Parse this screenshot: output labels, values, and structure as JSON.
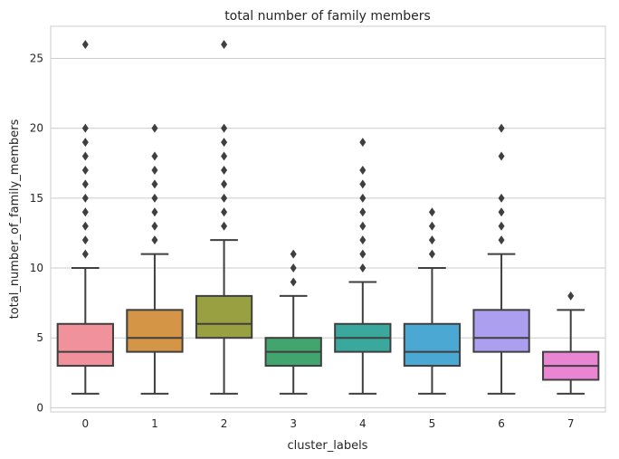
{
  "chart_data": {
    "type": "box",
    "title": "total number of family members",
    "xlabel": "cluster_labels",
    "ylabel": "total_number_of_family_members",
    "ylim": [
      -0.3,
      27.3
    ],
    "yticks": [
      0,
      5,
      10,
      15,
      20,
      25
    ],
    "grid": true,
    "categories": [
      "0",
      "1",
      "2",
      "3",
      "4",
      "5",
      "6",
      "7"
    ],
    "colors": [
      "#f0919c",
      "#d49546",
      "#98a041",
      "#43a56e",
      "#3aa89c",
      "#4aa8d2",
      "#ad9ff0",
      "#e985d2"
    ],
    "boxes": [
      {
        "label": "0",
        "whisker_low": 1,
        "q1": 3,
        "median": 4,
        "q3": 6,
        "whisker_high": 10,
        "outliers": [
          11,
          12,
          13,
          14,
          15,
          16,
          17,
          18,
          19,
          20,
          26
        ]
      },
      {
        "label": "1",
        "whisker_low": 1,
        "q1": 4,
        "median": 5,
        "q3": 7,
        "whisker_high": 11,
        "outliers": [
          12,
          13,
          14,
          15,
          16,
          17,
          18,
          20
        ]
      },
      {
        "label": "2",
        "whisker_low": 1,
        "q1": 5,
        "median": 6,
        "q3": 8,
        "whisker_high": 12,
        "outliers": [
          13,
          14,
          15,
          16,
          17,
          18,
          19,
          20,
          26
        ]
      },
      {
        "label": "3",
        "whisker_low": 1,
        "q1": 3,
        "median": 4,
        "q3": 5,
        "whisker_high": 8,
        "outliers": [
          9,
          10,
          11
        ]
      },
      {
        "label": "4",
        "whisker_low": 1,
        "q1": 4,
        "median": 5,
        "q3": 6,
        "whisker_high": 9,
        "outliers": [
          10,
          11,
          12,
          13,
          14,
          15,
          16,
          17,
          19
        ]
      },
      {
        "label": "5",
        "whisker_low": 1,
        "q1": 3,
        "median": 4,
        "q3": 6,
        "whisker_high": 10,
        "outliers": [
          11,
          12,
          13,
          14
        ]
      },
      {
        "label": "6",
        "whisker_low": 1,
        "q1": 4,
        "median": 5,
        "q3": 7,
        "whisker_high": 11,
        "outliers": [
          12,
          13,
          14,
          15,
          18,
          20
        ]
      },
      {
        "label": "7",
        "whisker_low": 1,
        "q1": 2,
        "median": 3,
        "q3": 4,
        "whisker_high": 7,
        "outliers": [
          8
        ]
      }
    ]
  }
}
